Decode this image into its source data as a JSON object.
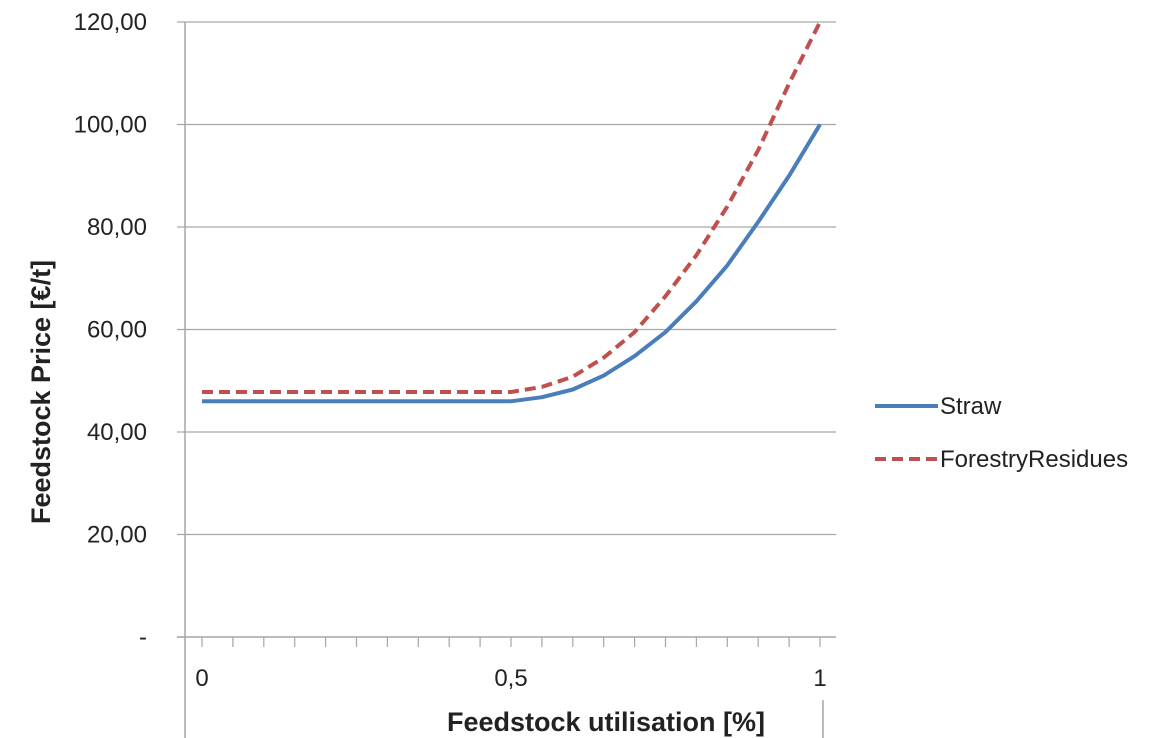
{
  "chart_data": {
    "type": "line",
    "xlabel": "Feedstock utilisation [%]",
    "ylabel": "Feedstock Price [€/t]",
    "xlim": [
      0,
      1
    ],
    "ylim": [
      0,
      120
    ],
    "grid": "horizontal",
    "legend_position": "right",
    "x_tick_labels": [
      {
        "value": 0,
        "label": "0"
      },
      {
        "value": 0.5,
        "label": "0,5"
      },
      {
        "value": 1,
        "label": "1"
      }
    ],
    "y_tick_labels": [
      {
        "value": 0,
        "label": "-"
      },
      {
        "value": 20,
        "label": "20,00"
      },
      {
        "value": 40,
        "label": "40,00"
      },
      {
        "value": 60,
        "label": "60,00"
      },
      {
        "value": 80,
        "label": "80,00"
      },
      {
        "value": 100,
        "label": "100,00"
      },
      {
        "value": 120,
        "label": "120,00"
      }
    ],
    "x": [
      0,
      0.05,
      0.1,
      0.15,
      0.2,
      0.25,
      0.3,
      0.35,
      0.4,
      0.45,
      0.5,
      0.55,
      0.6,
      0.65,
      0.7,
      0.75,
      0.8,
      0.85,
      0.9,
      0.95,
      1
    ],
    "series": [
      {
        "name": "Straw",
        "color": "#4a7ebb",
        "dash": "solid",
        "values": [
          46,
          46,
          46,
          46,
          46,
          46,
          46,
          46,
          46,
          46,
          46,
          46.8,
          48.3,
          51,
          54.8,
          59.5,
          65.5,
          72.5,
          81,
          90,
          100
        ]
      },
      {
        "name": "ForestryResidues",
        "color": "#c0504d",
        "dash": "dashed",
        "values": [
          47.8,
          47.8,
          47.8,
          47.8,
          47.8,
          47.8,
          47.8,
          47.8,
          47.8,
          47.8,
          47.8,
          48.8,
          50.8,
          54.5,
          59.5,
          66.5,
          74.5,
          84,
          95,
          108,
          120
        ]
      }
    ]
  }
}
